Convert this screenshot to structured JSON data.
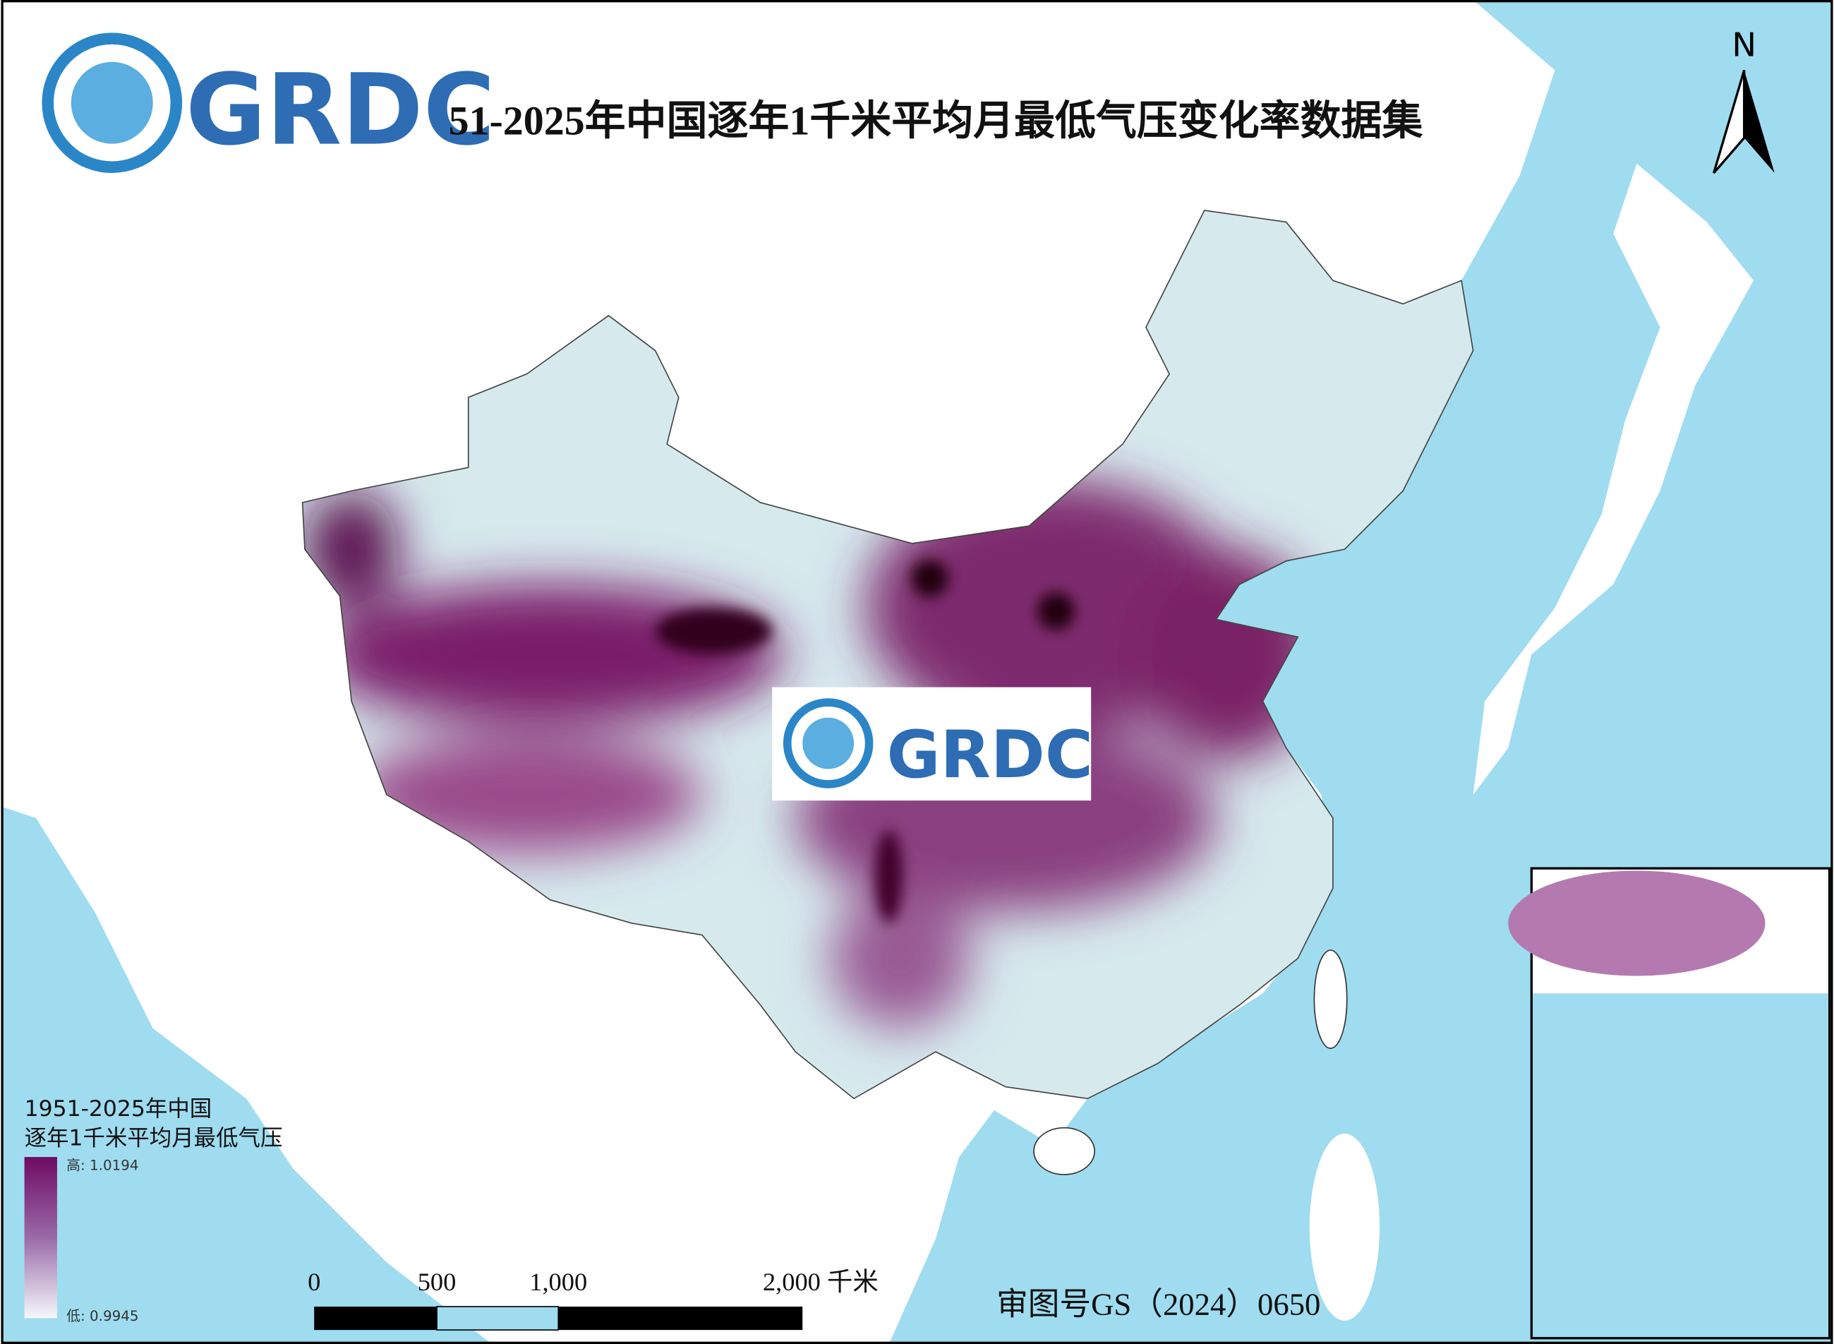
{
  "header": {
    "logo_text": "GRDC",
    "title": "51-2025年中国逐年1千米平均月最低气压变化率数据集"
  },
  "north_arrow": {
    "label": "N"
  },
  "watermark": {
    "logo_text": "GRDC"
  },
  "legend": {
    "title_lines": [
      "1951-2025年中国",
      "逐年1千米平均月最低气压"
    ],
    "high_label": "高: 1.0194",
    "low_label": "低: 0.9945"
  },
  "scale_bar": {
    "labels": [
      "0",
      "500",
      "1,000",
      "2,000 千米"
    ]
  },
  "footer": {
    "approval": "审图号GS（2024）0650"
  }
}
